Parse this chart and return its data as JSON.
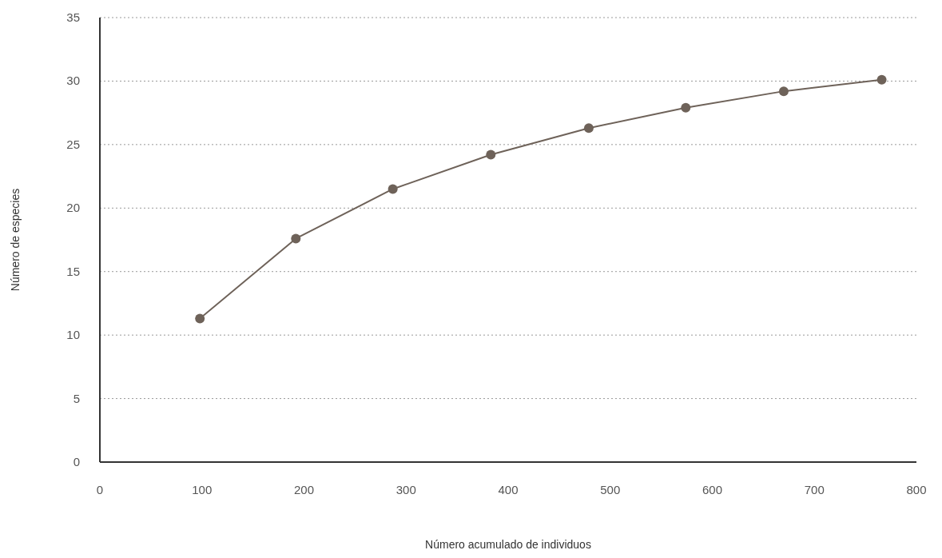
{
  "chart_data": {
    "type": "line",
    "xlabel": "Número acumulado de individuos",
    "ylabel": "Número de especies",
    "x": [
      98,
      192,
      287,
      383,
      479,
      574,
      670,
      766
    ],
    "series": [
      {
        "color": "#6e6259",
        "values": [
          11.3,
          17.6,
          21.5,
          24.2,
          26.3,
          27.9,
          29.2,
          30.1
        ]
      }
    ],
    "xlim": [
      0,
      800
    ],
    "xticks": [
      0,
      100,
      200,
      300,
      400,
      500,
      600,
      700,
      800
    ],
    "ylim": [
      0,
      35
    ],
    "yticks": [
      0,
      5,
      10,
      15,
      20,
      25,
      30,
      35
    ],
    "grid": "y",
    "marker": "circle",
    "line_style": "solid"
  }
}
